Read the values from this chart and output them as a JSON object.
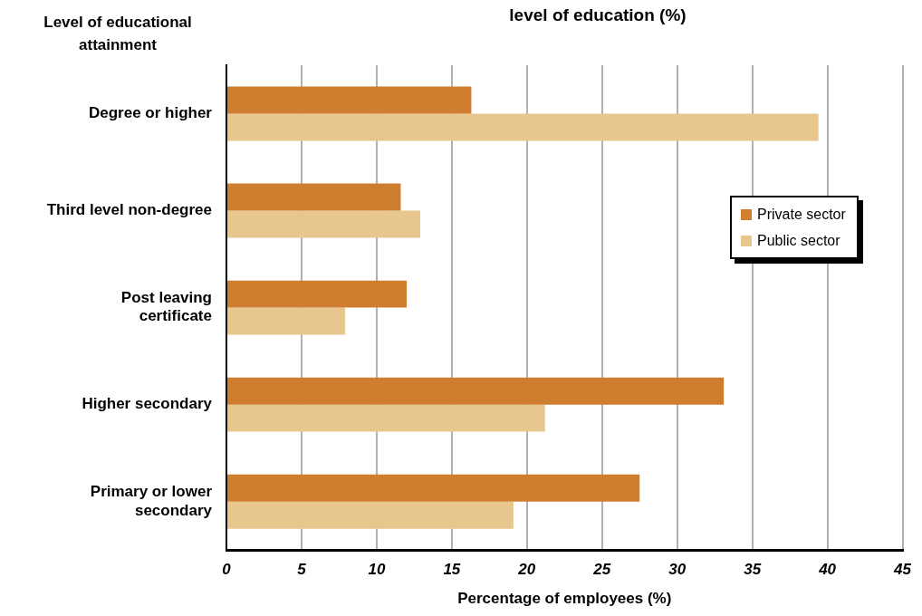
{
  "chart_data": {
    "type": "bar",
    "orientation": "horizontal",
    "title": "level of education (%)",
    "ylabel": "Level of educational attainment",
    "xlabel": "Percentage of employees (%)",
    "categories": [
      "Degree or higher",
      "Third level non-degree",
      "Post leaving certificate",
      "Higher secondary",
      "Primary or lower secondary"
    ],
    "series": [
      {
        "name": "Private sector",
        "color": "#cf7e2f",
        "values": [
          16.3,
          11.6,
          12.0,
          33.1,
          27.5
        ]
      },
      {
        "name": "Public sector",
        "color": "#e7c78d",
        "values": [
          39.4,
          12.9,
          7.9,
          21.2,
          19.1
        ]
      }
    ],
    "xlim": [
      0,
      45
    ],
    "xticks": [
      0,
      5,
      10,
      15,
      20,
      25,
      30,
      35,
      40,
      45
    ],
    "grid": "x",
    "legend": "right"
  }
}
